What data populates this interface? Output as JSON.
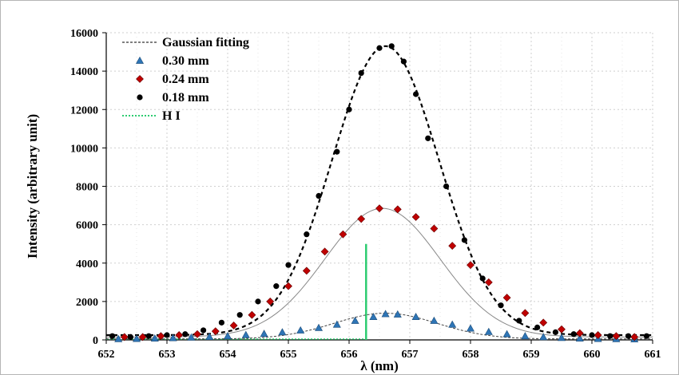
{
  "chart_data": {
    "type": "scatter",
    "xlabel": "λ (nm)",
    "ylabel": "Intensity (arbitrary unit)",
    "xlim": [
      652,
      661
    ],
    "ylim": [
      0,
      16000
    ],
    "x_ticks": [
      652,
      653,
      654,
      655,
      656,
      657,
      658,
      659,
      660,
      661
    ],
    "y_ticks": [
      0,
      2000,
      4000,
      6000,
      8000,
      10000,
      12000,
      14000,
      16000
    ],
    "grid": true,
    "legend_position": "top-left",
    "legend": [
      {
        "label": "Gaussian fitting",
        "style": "dashed-line",
        "color": "#333333"
      },
      {
        "label": "0.30 mm",
        "style": "triangle",
        "color": "#2e75b6"
      },
      {
        "label": "0.24 mm",
        "style": "diamond",
        "color": "#c00000"
      },
      {
        "label": "0.18 mm",
        "style": "circle",
        "color": "#000000"
      },
      {
        "label": "H I",
        "style": "dotted-line",
        "color": "#2ecc71"
      }
    ],
    "series": [
      {
        "name": "0.30 mm",
        "marker": "triangle",
        "color": "#2e75b6",
        "points": [
          [
            652.2,
            50
          ],
          [
            652.5,
            60
          ],
          [
            652.8,
            80
          ],
          [
            653.1,
            100
          ],
          [
            653.4,
            130
          ],
          [
            653.7,
            160
          ],
          [
            654.0,
            200
          ],
          [
            654.3,
            260
          ],
          [
            654.6,
            320
          ],
          [
            654.9,
            400
          ],
          [
            655.2,
            500
          ],
          [
            655.5,
            630
          ],
          [
            655.8,
            800
          ],
          [
            656.1,
            1000
          ],
          [
            656.4,
            1200
          ],
          [
            656.6,
            1350
          ],
          [
            656.8,
            1330
          ],
          [
            657.1,
            1200
          ],
          [
            657.4,
            1000
          ],
          [
            657.7,
            800
          ],
          [
            658.0,
            600
          ],
          [
            658.3,
            420
          ],
          [
            658.6,
            300
          ],
          [
            658.9,
            200
          ],
          [
            659.2,
            150
          ],
          [
            659.5,
            110
          ],
          [
            659.8,
            80
          ],
          [
            660.1,
            60
          ],
          [
            660.4,
            50
          ],
          [
            660.7,
            40
          ]
        ]
      },
      {
        "name": "0.24 mm",
        "marker": "diamond",
        "color": "#c00000",
        "points": [
          [
            652.3,
            150
          ],
          [
            652.6,
            150
          ],
          [
            652.9,
            200
          ],
          [
            653.2,
            250
          ],
          [
            653.5,
            300
          ],
          [
            653.8,
            450
          ],
          [
            654.1,
            750
          ],
          [
            654.4,
            1300
          ],
          [
            654.7,
            2000
          ],
          [
            655.0,
            2800
          ],
          [
            655.3,
            3600
          ],
          [
            655.6,
            4600
          ],
          [
            655.9,
            5500
          ],
          [
            656.2,
            6300
          ],
          [
            656.5,
            6850
          ],
          [
            656.8,
            6800
          ],
          [
            657.1,
            6400
          ],
          [
            657.4,
            5800
          ],
          [
            657.7,
            4900
          ],
          [
            658.0,
            3900
          ],
          [
            658.3,
            3000
          ],
          [
            658.6,
            2200
          ],
          [
            658.9,
            1400
          ],
          [
            659.2,
            900
          ],
          [
            659.5,
            550
          ],
          [
            659.8,
            350
          ],
          [
            660.1,
            250
          ],
          [
            660.4,
            200
          ],
          [
            660.7,
            150
          ]
        ]
      },
      {
        "name": "0.18 mm",
        "marker": "circle",
        "color": "#000000",
        "points": [
          [
            652.1,
            200
          ],
          [
            652.4,
            150
          ],
          [
            652.7,
            200
          ],
          [
            653.0,
            250
          ],
          [
            653.3,
            300
          ],
          [
            653.6,
            500
          ],
          [
            653.9,
            900
          ],
          [
            654.2,
            1300
          ],
          [
            654.5,
            2000
          ],
          [
            654.8,
            2800
          ],
          [
            655.0,
            3900
          ],
          [
            655.3,
            5500
          ],
          [
            655.5,
            7500
          ],
          [
            655.8,
            9800
          ],
          [
            656.0,
            12000
          ],
          [
            656.2,
            13900
          ],
          [
            656.5,
            15200
          ],
          [
            656.7,
            15300
          ],
          [
            656.9,
            14500
          ],
          [
            657.1,
            12800
          ],
          [
            657.3,
            10500
          ],
          [
            657.6,
            8000
          ],
          [
            657.9,
            5200
          ],
          [
            658.2,
            3200
          ],
          [
            658.5,
            1800
          ],
          [
            658.8,
            1000
          ],
          [
            659.1,
            650
          ],
          [
            659.4,
            400
          ],
          [
            659.7,
            300
          ],
          [
            660.0,
            250
          ],
          [
            660.3,
            200
          ],
          [
            660.6,
            200
          ],
          [
            660.9,
            200
          ]
        ]
      },
      {
        "name": "H I",
        "type": "vertical-line",
        "color": "#2ecc71",
        "x": 656.28,
        "y_range": [
          0,
          5000
        ]
      }
    ],
    "fits": [
      {
        "name": "Gaussian fitting",
        "for": "0.30 mm",
        "amplitude": 1340,
        "center": 656.6,
        "sigma": 0.85,
        "baseline": 50
      },
      {
        "name": "Gaussian fitting",
        "for": "0.24 mm",
        "amplitude": 6700,
        "center": 656.55,
        "sigma": 0.95,
        "baseline": 150
      },
      {
        "name": "Gaussian fitting",
        "for": "0.18 mm",
        "amplitude": 15050,
        "center": 656.6,
        "sigma": 0.88,
        "baseline": 250
      }
    ]
  }
}
